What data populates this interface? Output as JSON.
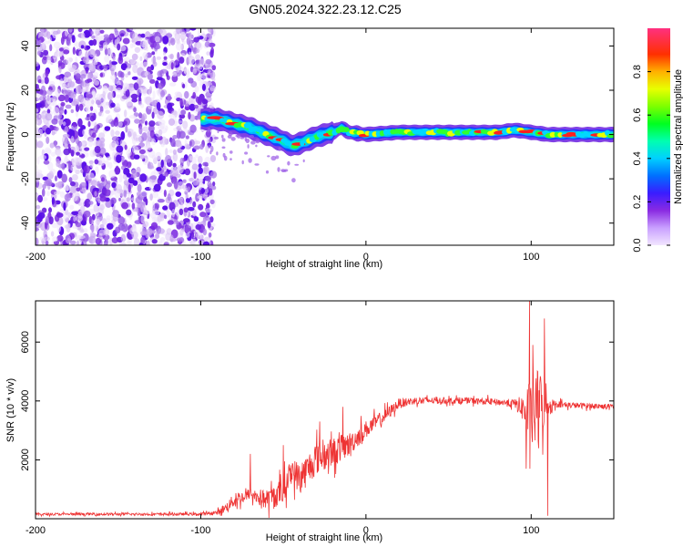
{
  "title": "GN05.2024.322.23.12.C25",
  "chart_data": [
    {
      "type": "heatmap",
      "name": "spectrogram",
      "xlabel": "Height of straight line (km)",
      "ylabel": "Frequency (Hz)",
      "xlim": [
        -200,
        150
      ],
      "ylim": [
        -50,
        48
      ],
      "xticks": [
        -200,
        -100,
        0,
        100
      ],
      "yticks": [
        -40,
        -20,
        0,
        20,
        40
      ],
      "noise_region_x": [
        -200,
        -92
      ],
      "signal_track": {
        "x": [
          -100,
          -90,
          -80,
          -70,
          -60,
          -50,
          -45,
          -40,
          -30,
          -20,
          -15,
          -10,
          0,
          20,
          40,
          60,
          80,
          90,
          100,
          110,
          120,
          150
        ],
        "freq": [
          7,
          7,
          5,
          3,
          0,
          -3,
          -5,
          -4,
          -1,
          1,
          3,
          1,
          0,
          1,
          1,
          1,
          1,
          2,
          1,
          0,
          0,
          0
        ]
      },
      "colorbar": {
        "label": "Normalized spectral amplitude",
        "ticks": [
          0.0,
          0.2,
          0.4,
          0.6,
          0.8
        ],
        "tick_labels": [
          "0.0",
          "0.2",
          "0.4",
          "0.6",
          "0.8"
        ],
        "range": [
          0,
          1
        ]
      }
    },
    {
      "type": "line",
      "name": "snr",
      "xlabel": "Height of straight line (km)",
      "ylabel": "SNR (10 * v/v)",
      "xlim": [
        -200,
        150
      ],
      "ylim": [
        0,
        7400
      ],
      "xticks": [
        -200,
        -100,
        0,
        100
      ],
      "yticks": [
        2000,
        4000,
        6000
      ],
      "color": "#ee3333",
      "envelope": {
        "x": [
          -200,
          -100,
          -90,
          -85,
          -80,
          -70,
          -60,
          -50,
          -45,
          -40,
          -30,
          -20,
          -10,
          0,
          10,
          20,
          30,
          40,
          60,
          80,
          90,
          95,
          100,
          105,
          110,
          115,
          120,
          150
        ],
        "base": [
          150,
          150,
          200,
          350,
          600,
          800,
          600,
          900,
          1600,
          1300,
          2000,
          2200,
          2500,
          3000,
          3400,
          3900,
          4000,
          4000,
          4000,
          3950,
          3900,
          3700,
          3400,
          3600,
          3800,
          3900,
          3850,
          3800
        ],
        "amp": [
          80,
          90,
          150,
          300,
          450,
          450,
          700,
          900,
          900,
          1100,
          1100,
          1000,
          800,
          600,
          450,
          350,
          250,
          220,
          220,
          220,
          300,
          900,
          2600,
          2800,
          600,
          250,
          200,
          180
        ]
      },
      "spikes": [
        {
          "x": -70,
          "y": 2200
        },
        {
          "x": -50,
          "y": 2500
        },
        {
          "x": -28,
          "y": 3300
        },
        {
          "x": -14,
          "y": 3800
        },
        {
          "x": 99,
          "y": 7400
        },
        {
          "x": 101,
          "y": 5900
        },
        {
          "x": 104,
          "y": 5000
        },
        {
          "x": 108,
          "y": 6800
        },
        {
          "x": 110,
          "y": 100
        },
        {
          "x": 97,
          "y": 1700
        }
      ]
    }
  ]
}
